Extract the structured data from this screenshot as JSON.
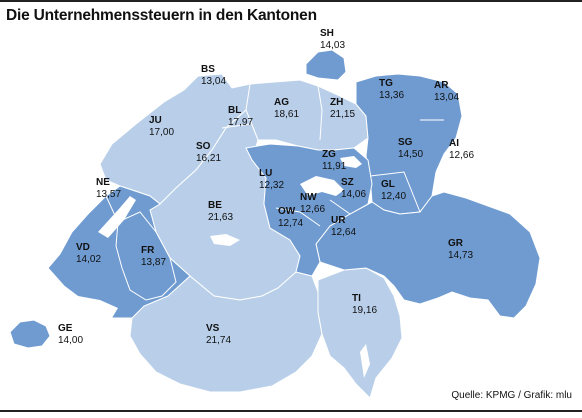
{
  "title": "Die Unternehmenssteuern in den Kantonen",
  "source": "Quelle: KPMG / Grafik: mlu",
  "colors": {
    "low_rate": "#6f9bd1",
    "high_rate": "#b9cfe9",
    "lake": "#ffffff",
    "border": "#ffffff",
    "text": "#111111"
  },
  "cantons": [
    {
      "code": "SH",
      "value": "14,03"
    },
    {
      "code": "BS",
      "value": "13,04"
    },
    {
      "code": "TG",
      "value": "13,36"
    },
    {
      "code": "AR",
      "value": "13,04"
    },
    {
      "code": "AG",
      "value": "18,61"
    },
    {
      "code": "ZH",
      "value": "21,15"
    },
    {
      "code": "BL",
      "value": "17,97"
    },
    {
      "code": "JU",
      "value": "17,00"
    },
    {
      "code": "SG",
      "value": "14,50"
    },
    {
      "code": "AI",
      "value": "12,66"
    },
    {
      "code": "SO",
      "value": "16,21"
    },
    {
      "code": "ZG",
      "value": "11,91"
    },
    {
      "code": "LU",
      "value": "12,32"
    },
    {
      "code": "SZ",
      "value": "14,06"
    },
    {
      "code": "GL",
      "value": "12,40"
    },
    {
      "code": "NE",
      "value": "13,57"
    },
    {
      "code": "BE",
      "value": "21,63"
    },
    {
      "code": "NW",
      "value": "12,66"
    },
    {
      "code": "OW",
      "value": "12,74"
    },
    {
      "code": "UR",
      "value": "12,64"
    },
    {
      "code": "VD",
      "value": "14,02"
    },
    {
      "code": "FR",
      "value": "13,87"
    },
    {
      "code": "GR",
      "value": "14,73"
    },
    {
      "code": "TI",
      "value": "19,16"
    },
    {
      "code": "VS",
      "value": "21,74"
    },
    {
      "code": "GE",
      "value": "14,00"
    }
  ]
}
